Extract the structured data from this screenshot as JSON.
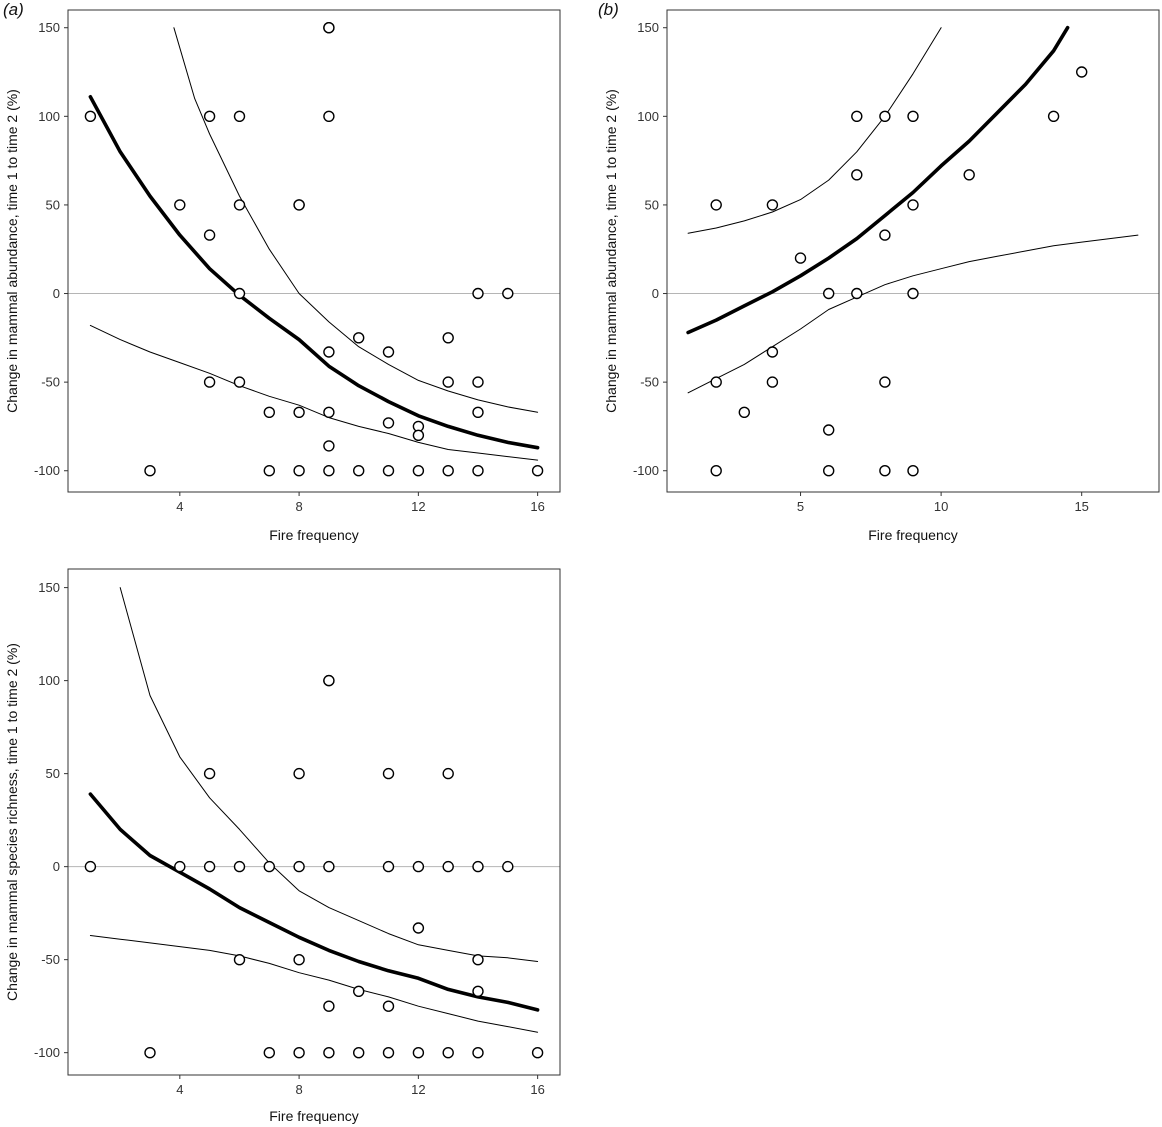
{
  "chart_data": [
    {
      "id": "a",
      "panel_label": "(a)",
      "type": "scatter",
      "title": "",
      "xlabel": "Fire frequency",
      "ylabel": "Change in mammal abundance, time 1 to time 2 (%)",
      "xlim": [
        0.25,
        16.75
      ],
      "ylim": [
        -112,
        160
      ],
      "xticks": [
        4,
        8,
        12,
        16
      ],
      "yticks": [
        -100,
        -50,
        0,
        50,
        100,
        150
      ],
      "reference_line_y": 0,
      "points": [
        [
          1,
          100
        ],
        [
          3,
          -100
        ],
        [
          4,
          50
        ],
        [
          5,
          100
        ],
        [
          5,
          33
        ],
        [
          5,
          -50
        ],
        [
          6,
          100
        ],
        [
          6,
          50
        ],
        [
          6,
          0
        ],
        [
          6,
          -50
        ],
        [
          7,
          -67
        ],
        [
          7,
          -100
        ],
        [
          8,
          50
        ],
        [
          8,
          50
        ],
        [
          8,
          -67
        ],
        [
          8,
          -100
        ],
        [
          9,
          150
        ],
        [
          9,
          150
        ],
        [
          9,
          100
        ],
        [
          9,
          -33
        ],
        [
          9,
          -67
        ],
        [
          9,
          -86
        ],
        [
          9,
          -100
        ],
        [
          10,
          -25
        ],
        [
          10,
          -100
        ],
        [
          11,
          -33
        ],
        [
          11,
          -73
        ],
        [
          11,
          -100
        ],
        [
          12,
          -75
        ],
        [
          12,
          -80
        ],
        [
          12,
          -100
        ],
        [
          13,
          -25
        ],
        [
          13,
          -50
        ],
        [
          13,
          -100
        ],
        [
          14,
          0
        ],
        [
          14,
          -50
        ],
        [
          14,
          -67
        ],
        [
          14,
          -100
        ],
        [
          15,
          0
        ],
        [
          16,
          -100
        ]
      ],
      "series": [
        {
          "name": "fitted",
          "style": "thick",
          "x": [
            1,
            2,
            3,
            4,
            5,
            6,
            7,
            8,
            9,
            10,
            11,
            12,
            13,
            14,
            15,
            16
          ],
          "y": [
            111,
            80,
            55,
            33,
            14,
            -1,
            -14,
            -26,
            -41,
            -52,
            -61,
            -69,
            -75,
            -80,
            -84,
            -87
          ]
        },
        {
          "name": "upper CI",
          "style": "thin",
          "x": [
            3.8,
            4.5,
            5,
            6,
            7,
            8,
            9,
            10,
            11,
            12,
            13,
            14,
            15,
            16
          ],
          "y": [
            150,
            110,
            90,
            55,
            25,
            0,
            -16,
            -30,
            -40,
            -49,
            -55,
            -60,
            -64,
            -67
          ]
        },
        {
          "name": "lower CI",
          "style": "thin",
          "x": [
            1,
            2,
            3,
            4,
            5,
            6,
            7,
            8,
            9,
            10,
            11,
            12,
            13,
            14,
            15,
            16
          ],
          "y": [
            -18,
            -26,
            -33,
            -39,
            -45,
            -52,
            -58,
            -63,
            -70,
            -75,
            -79,
            -84,
            -88,
            -90,
            -92,
            -94
          ]
        }
      ]
    },
    {
      "id": "b",
      "panel_label": "(b)",
      "type": "scatter",
      "title": "",
      "xlabel": "Fire frequency",
      "ylabel": "Change in mammal abundance, time 1 to time 2 (%)",
      "xlim": [
        0.25,
        17.75
      ],
      "ylim": [
        -112,
        160
      ],
      "xticks": [
        5,
        10,
        15
      ],
      "yticks": [
        -100,
        -50,
        0,
        50,
        100,
        150
      ],
      "reference_line_y": 0,
      "points": [
        [
          2,
          50
        ],
        [
          2,
          -50
        ],
        [
          2,
          -100
        ],
        [
          3,
          -67
        ],
        [
          4,
          50
        ],
        [
          4,
          -33
        ],
        [
          4,
          -50
        ],
        [
          5,
          20
        ],
        [
          6,
          0
        ],
        [
          6,
          -77
        ],
        [
          6,
          -100
        ],
        [
          7,
          100
        ],
        [
          7,
          67
        ],
        [
          7,
          0
        ],
        [
          8,
          100
        ],
        [
          8,
          33
        ],
        [
          8,
          -50
        ],
        [
          8,
          -100
        ],
        [
          9,
          100
        ],
        [
          9,
          50
        ],
        [
          9,
          0
        ],
        [
          9,
          -100
        ],
        [
          11,
          67
        ],
        [
          14,
          100
        ],
        [
          15,
          125
        ]
      ],
      "series": [
        {
          "name": "fitted",
          "style": "thick",
          "x": [
            1,
            2,
            3,
            4,
            5,
            6,
            7,
            8,
            9,
            10,
            11,
            12,
            13,
            14,
            14.5
          ],
          "y": [
            -22,
            -15,
            -7,
            1,
            10,
            20,
            31,
            44,
            57,
            72,
            86,
            102,
            118,
            137,
            150
          ]
        },
        {
          "name": "upper CI",
          "style": "thin",
          "x": [
            1,
            2,
            3,
            4,
            5,
            6,
            7,
            8,
            9,
            10
          ],
          "y": [
            34,
            37,
            41,
            46,
            53,
            64,
            80,
            100,
            124,
            150
          ]
        },
        {
          "name": "lower CI",
          "style": "thin",
          "x": [
            1,
            2,
            3,
            4,
            5,
            6,
            7,
            8,
            9,
            10,
            11,
            12,
            13,
            14,
            15,
            16,
            17
          ],
          "y": [
            -56,
            -48,
            -40,
            -30,
            -20,
            -9,
            -2,
            5,
            10,
            14,
            18,
            21,
            24,
            27,
            29,
            31,
            33
          ]
        }
      ]
    },
    {
      "id": "c",
      "panel_label": "",
      "type": "scatter",
      "title": "",
      "xlabel": "Fire frequency",
      "ylabel": "Change in mammal species richness, time 1 to time 2 (%)",
      "xlim": [
        0.25,
        16.75
      ],
      "ylim": [
        -112,
        160
      ],
      "xticks": [
        4,
        8,
        12,
        16
      ],
      "yticks": [
        -100,
        -50,
        0,
        50,
        100,
        150
      ],
      "reference_line_y": 0,
      "points": [
        [
          1,
          0
        ],
        [
          3,
          -100
        ],
        [
          4,
          0
        ],
        [
          5,
          50
        ],
        [
          5,
          0
        ],
        [
          6,
          0
        ],
        [
          6,
          -50
        ],
        [
          7,
          0
        ],
        [
          7,
          -100
        ],
        [
          8,
          50
        ],
        [
          8,
          0
        ],
        [
          8,
          -50
        ],
        [
          8,
          -100
        ],
        [
          9,
          100
        ],
        [
          9,
          100
        ],
        [
          9,
          0
        ],
        [
          9,
          -75
        ],
        [
          9,
          -100
        ],
        [
          10,
          -67
        ],
        [
          10,
          -100
        ],
        [
          11,
          50
        ],
        [
          11,
          0
        ],
        [
          11,
          -75
        ],
        [
          11,
          -100
        ],
        [
          12,
          0
        ],
        [
          12,
          -33
        ],
        [
          12,
          -100
        ],
        [
          13,
          50
        ],
        [
          13,
          0
        ],
        [
          13,
          -100
        ],
        [
          14,
          0
        ],
        [
          14,
          -50
        ],
        [
          14,
          -67
        ],
        [
          14,
          -100
        ],
        [
          15,
          0
        ],
        [
          16,
          -100
        ]
      ],
      "series": [
        {
          "name": "fitted",
          "style": "thick",
          "x": [
            1,
            2,
            3,
            4,
            5,
            6,
            7,
            8,
            9,
            10,
            11,
            12,
            13,
            14,
            15,
            16
          ],
          "y": [
            39,
            20,
            6,
            -3,
            -12,
            -22,
            -30,
            -38,
            -45,
            -51,
            -56,
            -60,
            -66,
            -70,
            -73,
            -77
          ]
        },
        {
          "name": "upper CI",
          "style": "thin",
          "x": [
            2,
            3,
            4,
            5,
            6,
            7,
            8,
            9,
            10,
            11,
            12,
            13,
            14,
            15,
            16
          ],
          "y": [
            150,
            92,
            59,
            37,
            20,
            2,
            -13,
            -22,
            -29,
            -36,
            -42,
            -45,
            -48,
            -49,
            -51
          ]
        },
        {
          "name": "lower CI",
          "style": "thin",
          "x": [
            1,
            2,
            3,
            4,
            5,
            6,
            7,
            8,
            9,
            10,
            11,
            12,
            13,
            14,
            15,
            16
          ],
          "y": [
            -37,
            -39,
            -41,
            -43,
            -45,
            -48,
            -52,
            -57,
            -61,
            -66,
            -70,
            -75,
            -79,
            -83,
            -86,
            -89
          ]
        }
      ]
    }
  ]
}
